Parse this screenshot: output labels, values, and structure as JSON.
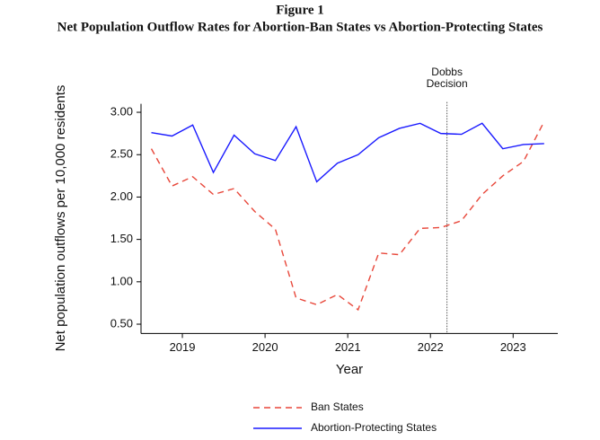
{
  "chart_data": {
    "type": "line",
    "title": "Figure 1",
    "subtitle": "Net Population Outflow Rates for Abortion-Ban States vs Abortion-Protecting States",
    "x_label": "Year",
    "y_label": "Net population outflows per 10,000 residents",
    "x": [
      2018.625,
      2018.875,
      2019.125,
      2019.375,
      2019.625,
      2019.875,
      2020.125,
      2020.375,
      2020.625,
      2020.875,
      2021.125,
      2021.375,
      2021.625,
      2021.875,
      2022.125,
      2022.375,
      2022.625,
      2022.875,
      2023.125,
      2023.375
    ],
    "series": [
      {
        "name": "Ban States",
        "color": "#e8473a",
        "style": "dashed",
        "values": [
          2.57,
          2.13,
          2.24,
          2.03,
          2.1,
          1.83,
          1.62,
          0.81,
          0.73,
          0.85,
          0.67,
          1.34,
          1.32,
          1.63,
          1.64,
          1.72,
          2.03,
          2.25,
          2.42,
          2.89
        ]
      },
      {
        "name": "Abortion-Protecting States",
        "color": "#1a1aff",
        "style": "solid",
        "values": [
          2.76,
          2.72,
          2.85,
          2.29,
          2.73,
          2.51,
          2.43,
          2.83,
          2.18,
          2.4,
          2.5,
          2.7,
          2.81,
          2.87,
          2.75,
          2.74,
          2.87,
          2.57,
          2.62,
          2.63
        ]
      }
    ],
    "xlim": [
      2018.5,
      2023.54
    ],
    "ylim": [
      0.39,
      3.1
    ],
    "xticks": [
      2019,
      2020,
      2021,
      2022,
      2023
    ],
    "yticks": [
      {
        "value": 0.5,
        "label": "0.50"
      },
      {
        "value": 1,
        "label": "1.00"
      },
      {
        "value": 1.5,
        "label": "1.50"
      },
      {
        "value": 2,
        "label": "2.00"
      },
      {
        "value": 2.5,
        "label": "2.50"
      },
      {
        "value": 3,
        "label": "3.00"
      }
    ],
    "annotations": [
      {
        "x": 2022.2,
        "text": [
          "Dobbs",
          "Decision"
        ]
      }
    ],
    "legend": "bottom"
  }
}
